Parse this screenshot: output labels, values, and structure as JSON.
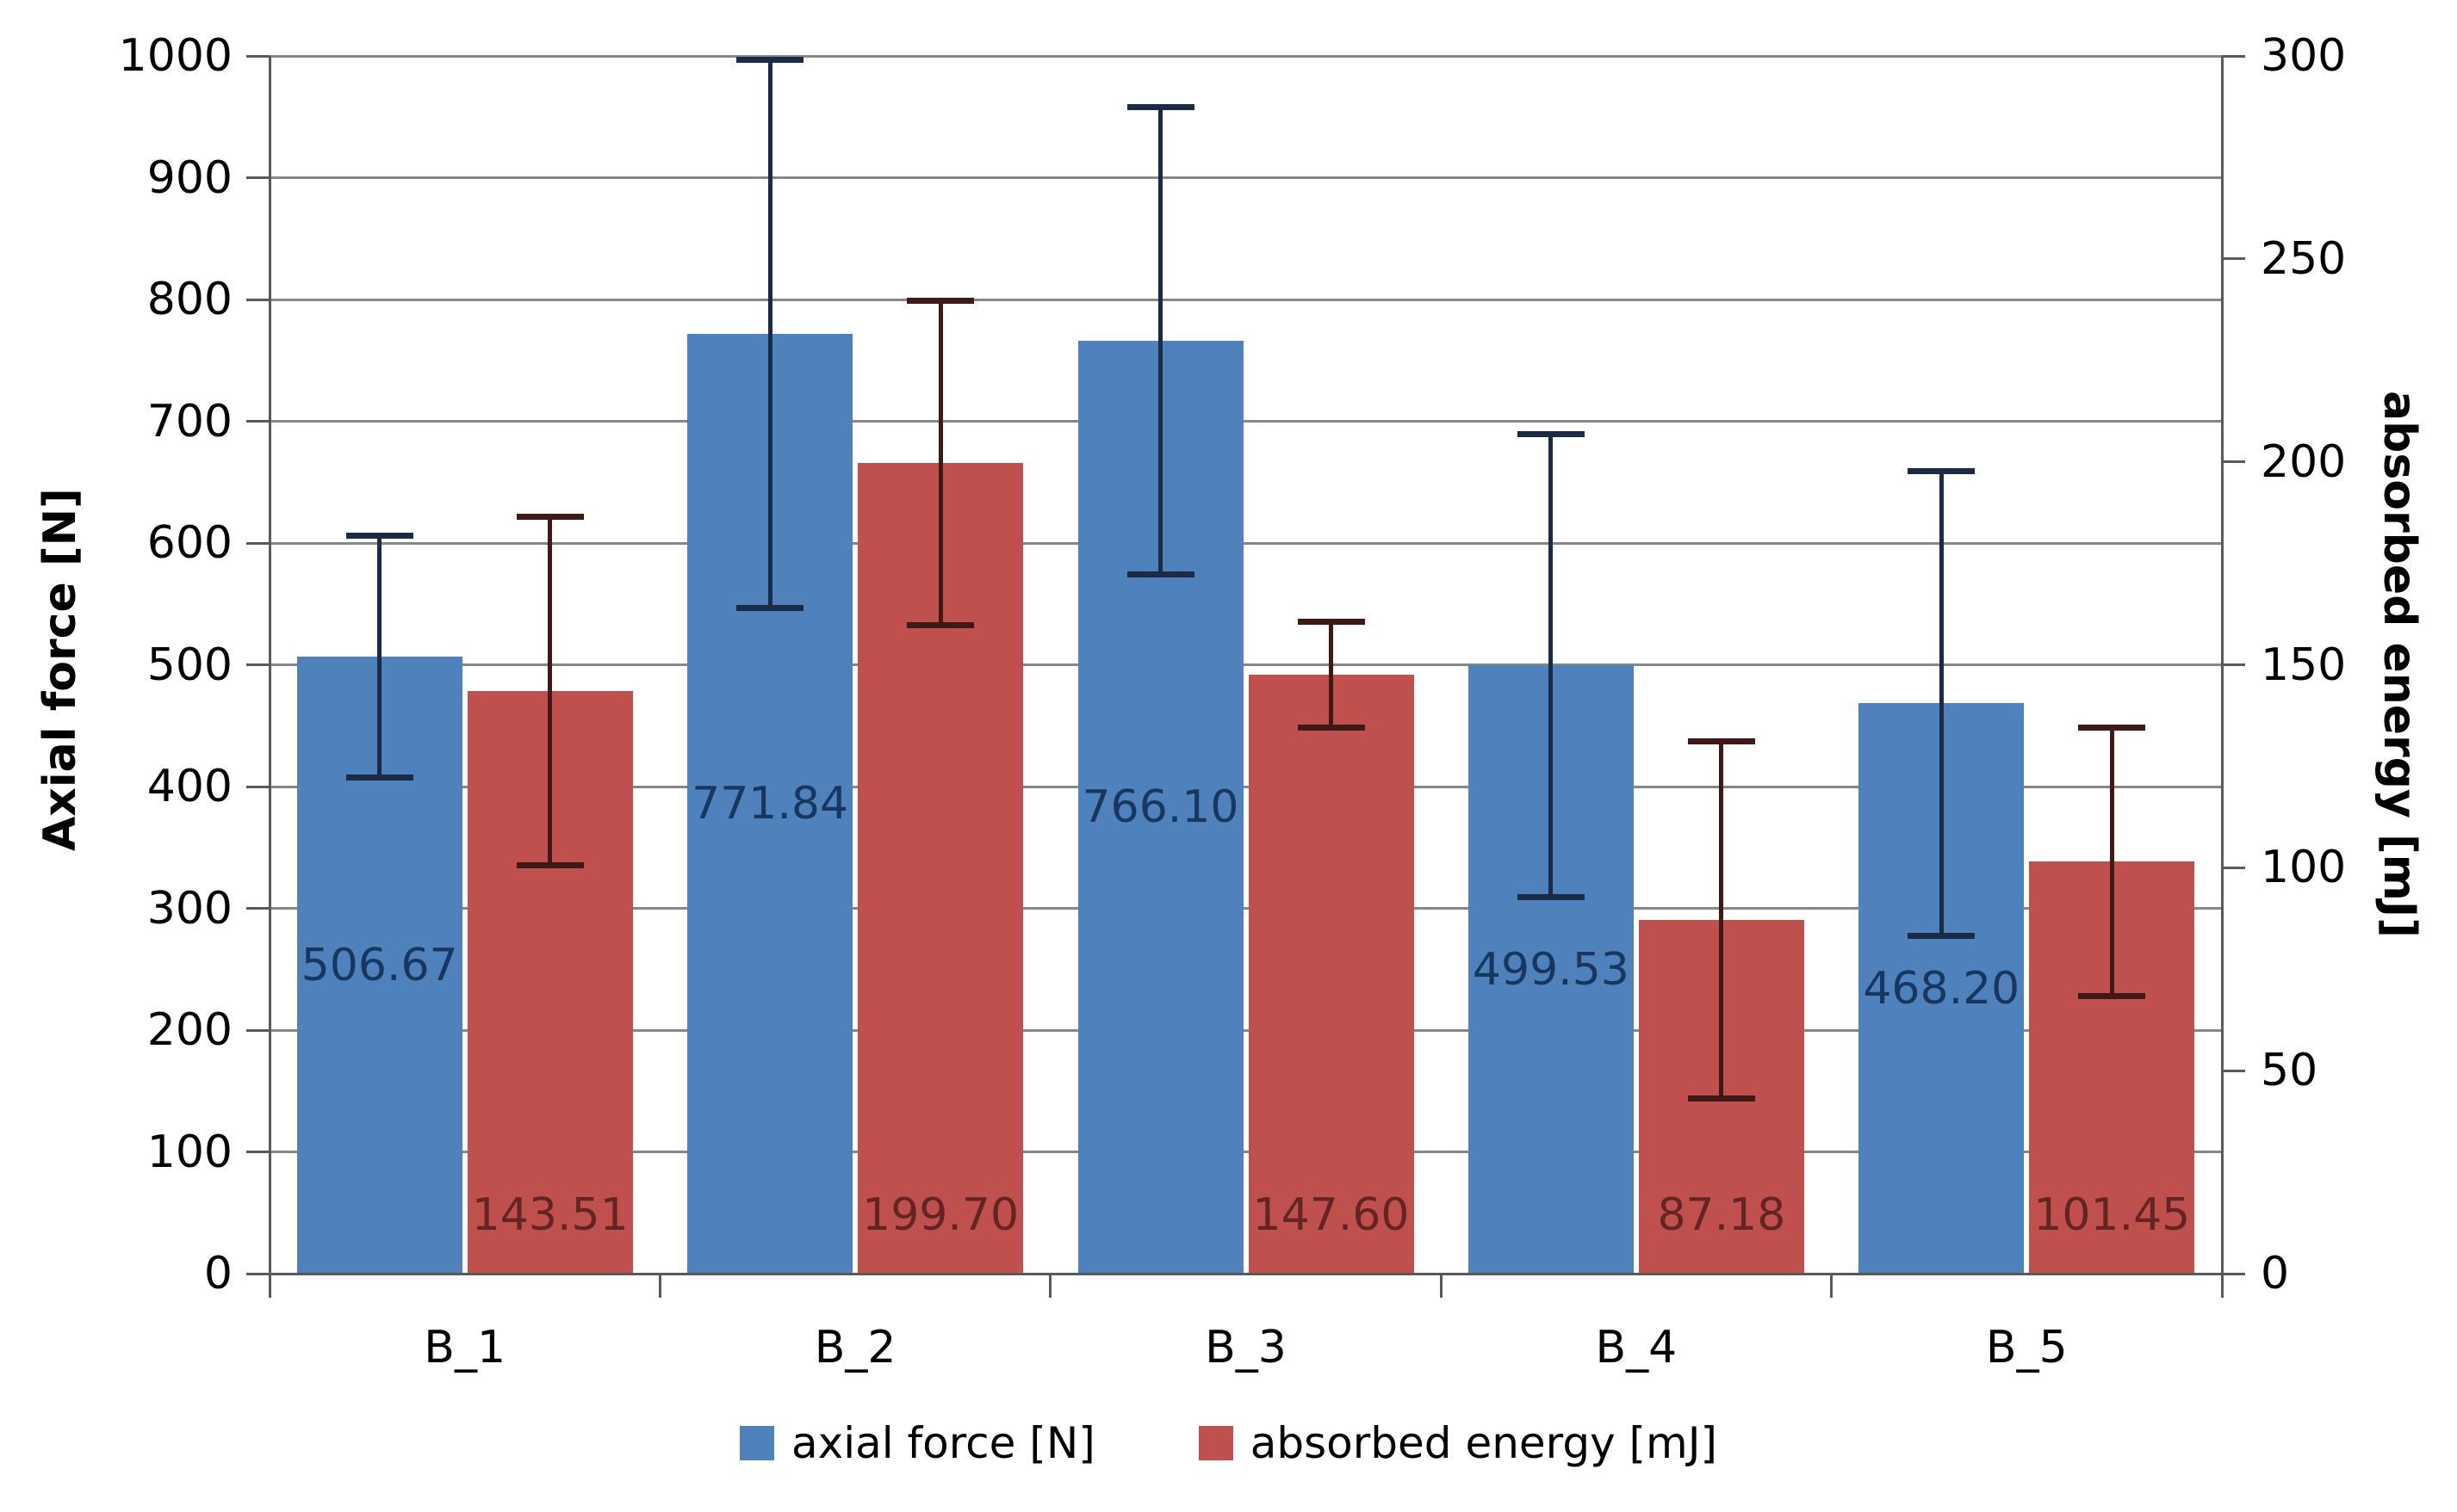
{
  "chart_data": {
    "type": "bar",
    "title": "",
    "categories": [
      "B_1",
      "B_2",
      "B_3",
      "B_4",
      "B_5"
    ],
    "series": [
      {
        "name": "axial force [N]",
        "axis": "left",
        "color": "#4F81BD",
        "label_color": "#17375E",
        "error_bar_color": "#1B2A45",
        "values": [
          506.67,
          771.84,
          766.1,
          499.53,
          468.2
        ],
        "value_labels": [
          "506.67",
          "771.84",
          "766.10",
          "499.53",
          "468.20"
        ],
        "error_bars": [
          99,
          225,
          192,
          190,
          191
        ],
        "label_position": "center"
      },
      {
        "name": "absorbed energy [mJ]",
        "axis": "right",
        "color": "#C0504D",
        "label_color": "#632523",
        "error_bar_color": "#3F1915",
        "values": [
          143.51,
          199.7,
          147.6,
          87.18,
          101.45
        ],
        "value_labels": [
          "143.51",
          "199.70",
          "147.60",
          "87.18",
          "101.45"
        ],
        "error_bars": [
          43,
          40,
          13,
          44,
          33
        ],
        "label_position": "inside_base"
      }
    ],
    "left_axis": {
      "title": "Axial force [N]",
      "min": 0,
      "max": 1000,
      "tick_interval": 100,
      "tick_labels": [
        "0",
        "100",
        "200",
        "300",
        "400",
        "500",
        "600",
        "700",
        "800",
        "900",
        "1000"
      ]
    },
    "right_axis": {
      "title": "absorbed energy [mJ]",
      "min": 0,
      "max": 300,
      "tick_interval": 50,
      "tick_labels": [
        "0",
        "50",
        "100",
        "150",
        "200",
        "250",
        "300"
      ]
    },
    "grid": true,
    "legend_position": "bottom",
    "colors": {
      "background": "#FFFFFF",
      "gridline": "#878787",
      "axis_line": "#595959",
      "tick_text": "#000000"
    }
  }
}
